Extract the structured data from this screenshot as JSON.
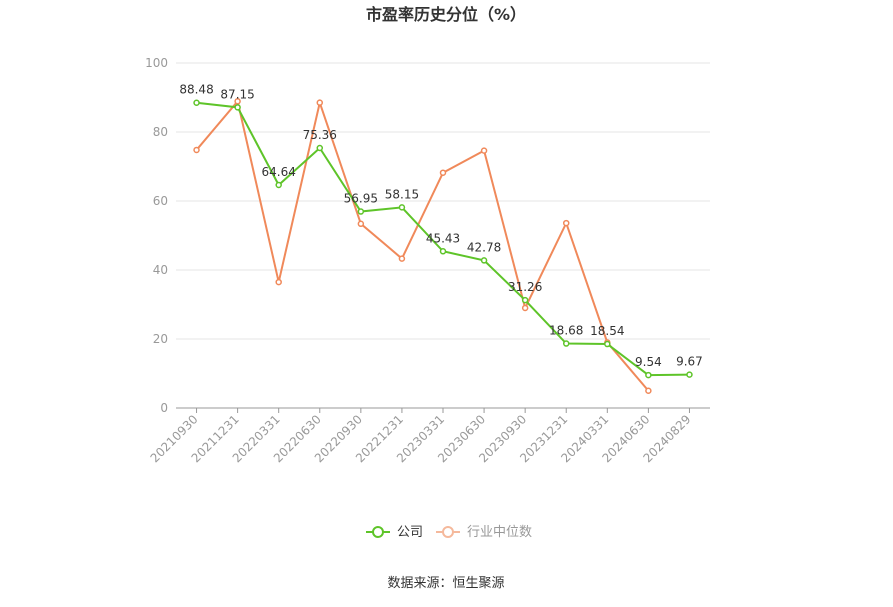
{
  "chart_data": {
    "type": "line",
    "title": "市盈率历史分位（%）",
    "categories": [
      "20210930",
      "20211231",
      "20220331",
      "20220630",
      "20220930",
      "20221231",
      "20230331",
      "20230630",
      "20230930",
      "20231231",
      "20240331",
      "20240630",
      "20240829"
    ],
    "series": [
      {
        "name": "公司",
        "color": "#5ec429",
        "values": [
          88.48,
          87.15,
          64.64,
          75.36,
          56.95,
          58.15,
          45.43,
          42.78,
          31.26,
          18.68,
          18.54,
          9.54,
          9.67
        ],
        "labels": [
          "88.48",
          "87.15",
          "64.64",
          "75.36",
          "56.95",
          "58.15",
          "45.43",
          "42.78",
          "31.26",
          "18.68",
          "18.54",
          "9.54",
          "9.67"
        ]
      },
      {
        "name": "行业中位数",
        "color": "#f0895a",
        "values": [
          74.8,
          88.9,
          36.5,
          88.5,
          53.4,
          43.3,
          68.2,
          74.6,
          29.0,
          53.6,
          19.0,
          5.0,
          null
        ]
      }
    ],
    "yticks": [
      0,
      20,
      40,
      60,
      80,
      100
    ],
    "ylim": [
      0,
      100
    ],
    "grid": true,
    "legend_position": "bottom-center"
  },
  "source_note": "数据来源：恒生聚源"
}
